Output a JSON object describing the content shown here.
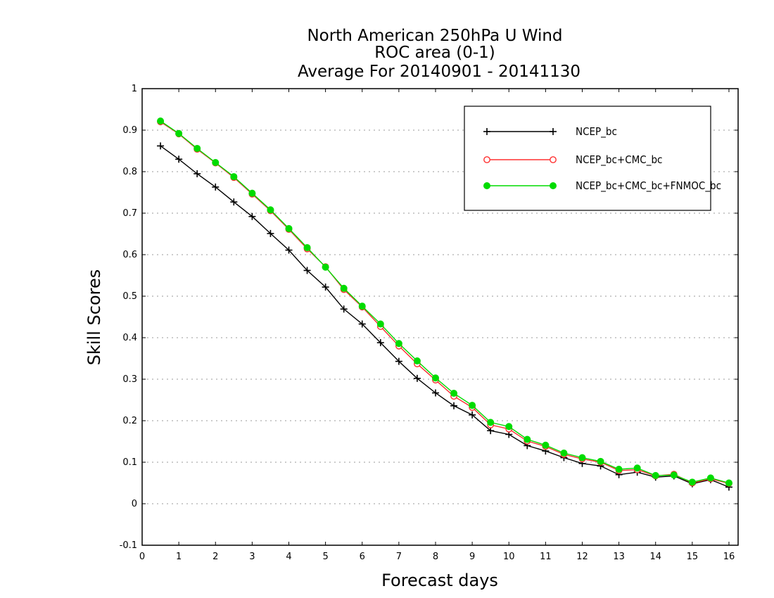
{
  "chart_data": {
    "type": "line",
    "title": "North American 250hPa U Wind",
    "subtitle": "ROC area (0-1)",
    "subtitle2": "Average For 20140901 - 20141130",
    "xlabel": "Forecast days",
    "ylabel": "Skill Scores",
    "xlim": [
      0,
      16.25
    ],
    "ylim": [
      -0.1,
      1
    ],
    "xticks": [
      0,
      1,
      2,
      3,
      4,
      5,
      6,
      7,
      8,
      9,
      10,
      11,
      12,
      13,
      14,
      15,
      16
    ],
    "xtick_labels": [
      "0",
      "1",
      "2",
      "3",
      "4",
      "5",
      "6",
      "7",
      "8",
      "9",
      "10",
      "11",
      "12",
      "13",
      "14",
      "15",
      "16"
    ],
    "yticks": [
      -0.1,
      0,
      0.1,
      0.2,
      0.3,
      0.4,
      0.5,
      0.6,
      0.7,
      0.8,
      0.9,
      1
    ],
    "ytick_labels": [
      "-0.1",
      "0",
      "0.1",
      "0.2",
      "0.3",
      "0.4",
      "0.5",
      "0.6",
      "0.7",
      "0.8",
      "0.9",
      "1"
    ],
    "grid": true,
    "legend_position": "top-right",
    "x": [
      0.5,
      1,
      1.5,
      2,
      2.5,
      3,
      3.5,
      4,
      4.5,
      5,
      5.5,
      6,
      6.5,
      7,
      7.5,
      8,
      8.5,
      9,
      9.5,
      10,
      10.5,
      11,
      11.5,
      12,
      12.5,
      13,
      13.5,
      14,
      14.5,
      15,
      15.5,
      16
    ],
    "series": [
      {
        "name": "NCEP_bc",
        "color": "#000000",
        "marker": "plus",
        "values": [
          0.862,
          0.83,
          0.795,
          0.763,
          0.727,
          0.692,
          0.651,
          0.611,
          0.562,
          0.522,
          0.469,
          0.433,
          0.388,
          0.343,
          0.302,
          0.267,
          0.236,
          0.214,
          0.176,
          0.167,
          0.14,
          0.127,
          0.111,
          0.097,
          0.091,
          0.07,
          0.076,
          0.064,
          0.067,
          0.048,
          0.058,
          0.04
        ]
      },
      {
        "name": "NCEP_bc+CMC_bc",
        "color": "#ff3030",
        "marker": "open-circle",
        "values": [
          0.92,
          0.891,
          0.854,
          0.821,
          0.786,
          0.746,
          0.706,
          0.661,
          0.614,
          0.571,
          0.516,
          0.474,
          0.427,
          0.38,
          0.337,
          0.298,
          0.259,
          0.232,
          0.19,
          0.18,
          0.151,
          0.138,
          0.119,
          0.108,
          0.1,
          0.08,
          0.082,
          0.067,
          0.071,
          0.05,
          0.06,
          0.049
        ]
      },
      {
        "name": "NCEP_bc+CMC_bc+FNMOC_bc",
        "color": "#00dc00",
        "marker": "filled-circle",
        "values": [
          0.922,
          0.892,
          0.856,
          0.822,
          0.788,
          0.748,
          0.708,
          0.663,
          0.617,
          0.57,
          0.519,
          0.476,
          0.433,
          0.386,
          0.344,
          0.303,
          0.266,
          0.237,
          0.196,
          0.186,
          0.155,
          0.141,
          0.122,
          0.111,
          0.102,
          0.083,
          0.086,
          0.068,
          0.069,
          0.052,
          0.062,
          0.05
        ]
      }
    ]
  }
}
